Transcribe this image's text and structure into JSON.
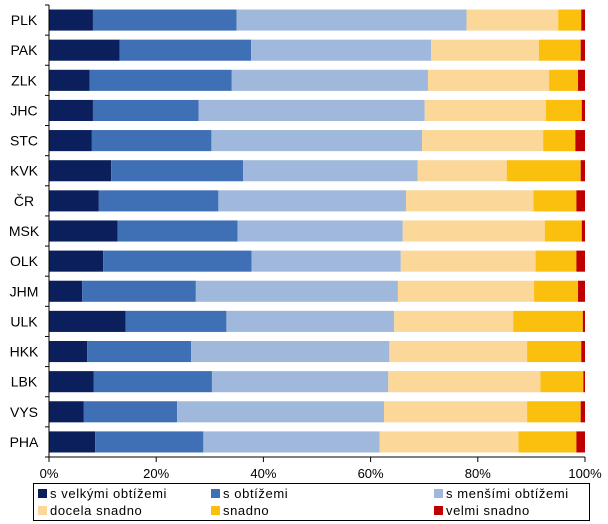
{
  "chart_data": {
    "type": "bar",
    "orientation": "horizontal",
    "stacked": "percent",
    "categories": [
      "PLK",
      "PAK",
      "ZLK",
      "JHC",
      "STC",
      "KVK",
      "ČR",
      "MSK",
      "OLK",
      "JHM",
      "ULK",
      "HKK",
      "LBK",
      "VYS",
      "PHA"
    ],
    "x_ticks": [
      "0%",
      "20%",
      "40%",
      "60%",
      "80%",
      "100%"
    ],
    "xlim": [
      0,
      100
    ],
    "grid": false,
    "legend_position": "bottom",
    "series": [
      {
        "name": "s velkými obtížemi",
        "color": "#0a1f5c",
        "values": [
          8.2,
          13.2,
          7.6,
          8.2,
          8.0,
          11.6,
          9.3,
          12.8,
          10.1,
          6.2,
          14.3,
          7.1,
          8.3,
          6.5,
          8.6
        ]
      },
      {
        "name": "s obtížemi",
        "color": "#3f6fb5",
        "values": [
          26.8,
          24.5,
          26.5,
          19.7,
          22.3,
          24.6,
          22.3,
          22.4,
          27.6,
          21.2,
          18.8,
          19.4,
          22.1,
          17.4,
          20.2
        ]
      },
      {
        "name": "s menšími obtížemi",
        "color": "#a0b8dc",
        "values": [
          42.9,
          33.6,
          36.6,
          42.2,
          39.3,
          32.6,
          35.0,
          30.8,
          27.8,
          37.7,
          31.3,
          37.0,
          32.9,
          38.6,
          32.9
        ]
      },
      {
        "name": "docela snadno",
        "color": "#fbd899",
        "values": [
          17.1,
          20.1,
          22.6,
          22.6,
          22.6,
          16.6,
          23.8,
          26.5,
          25.1,
          25.4,
          22.2,
          25.7,
          28.4,
          26.7,
          25.9
        ]
      },
      {
        "name": "snadno",
        "color": "#fbbf0e",
        "values": [
          4.3,
          7.8,
          5.4,
          6.7,
          6.0,
          13.8,
          8.0,
          6.9,
          7.6,
          8.2,
          13.0,
          10.1,
          8.0,
          10.0,
          10.8
        ]
      },
      {
        "name": "velmi snadno",
        "color": "#c00000",
        "values": [
          0.7,
          0.8,
          1.3,
          0.6,
          1.8,
          0.8,
          1.6,
          0.6,
          1.6,
          1.3,
          0.4,
          0.7,
          0.3,
          0.8,
          1.6
        ]
      }
    ]
  }
}
